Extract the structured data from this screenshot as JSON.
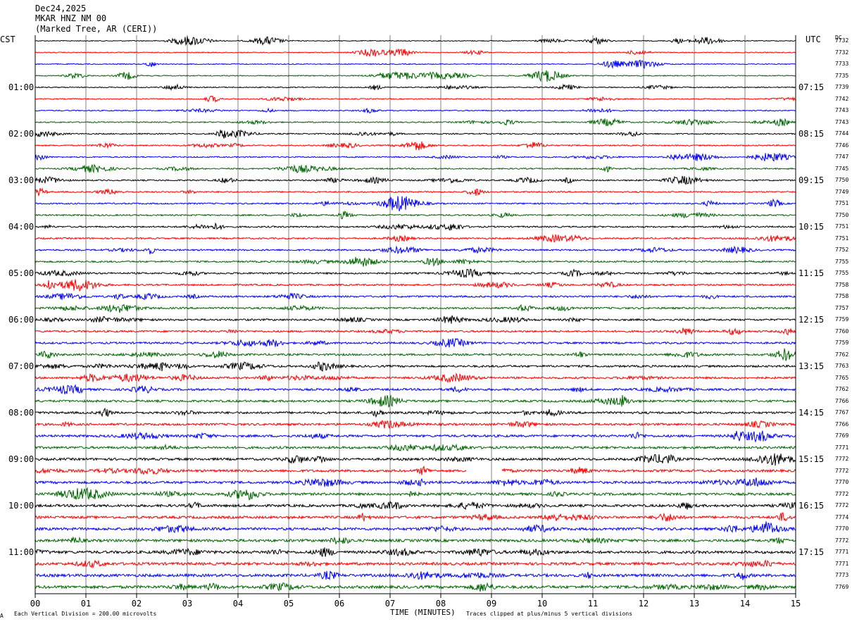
{
  "header": {
    "date": "Dec24,2025",
    "station": "MKAR HNZ NM 00",
    "location": "(Marked Tree, AR (CERI))"
  },
  "left_tz": "CST",
  "right_tz": "UTC",
  "dc_label": "DC",
  "footer": {
    "scale_note": "Each Vertical Division =  200.00 microvolts",
    "xlabel": "TIME (MINUTES)",
    "clip_note": "Traces clipped at plus/minus 5 vertical divisions",
    "corner_mark": "A"
  },
  "chart_data": {
    "type": "line",
    "title": "",
    "xlabel": "TIME (MINUTES)",
    "xlim": [
      0,
      15
    ],
    "x_ticks": [
      "00",
      "01",
      "02",
      "03",
      "04",
      "05",
      "06",
      "07",
      "08",
      "09",
      "10",
      "11",
      "12",
      "13",
      "14",
      "15"
    ],
    "left_hour_labels": [
      "01:00",
      "02:00",
      "03:00",
      "04:00",
      "05:00",
      "06:00",
      "07:00",
      "08:00",
      "09:00",
      "10:00",
      "11:00"
    ],
    "right_hour_labels": [
      "07:15",
      "08:15",
      "09:15",
      "10:15",
      "11:15",
      "12:15",
      "13:15",
      "14:15",
      "15:15",
      "16:15",
      "17:15"
    ],
    "trace_count": 48,
    "traces_per_hour": 4,
    "trace_colors": [
      "#000000",
      "#ff0000",
      "#0000ff",
      "#006600"
    ],
    "dc_offsets": [
      "7732",
      "7732",
      "7733",
      "7735",
      "7739",
      "7742",
      "7743",
      "7743",
      "7744",
      "7746",
      "7747",
      "7745",
      "7750",
      "7749",
      "7751",
      "7750",
      "7751",
      "7751",
      "7752",
      "7755",
      "7755",
      "7758",
      "7758",
      "7757",
      "7759",
      "7760",
      "7759",
      "7762",
      "7763",
      "7765",
      "7762",
      "7766",
      "7767",
      "7766",
      "7769",
      "7771",
      "7772",
      "7772",
      "7770",
      "7772",
      "7772",
      "7774",
      "7770",
      "7772",
      "7771",
      "7771",
      "7773",
      "7769"
    ],
    "gap": {
      "trace_index": 37,
      "x_start": 8.5,
      "x_end": 9.2
    },
    "grid": true
  }
}
